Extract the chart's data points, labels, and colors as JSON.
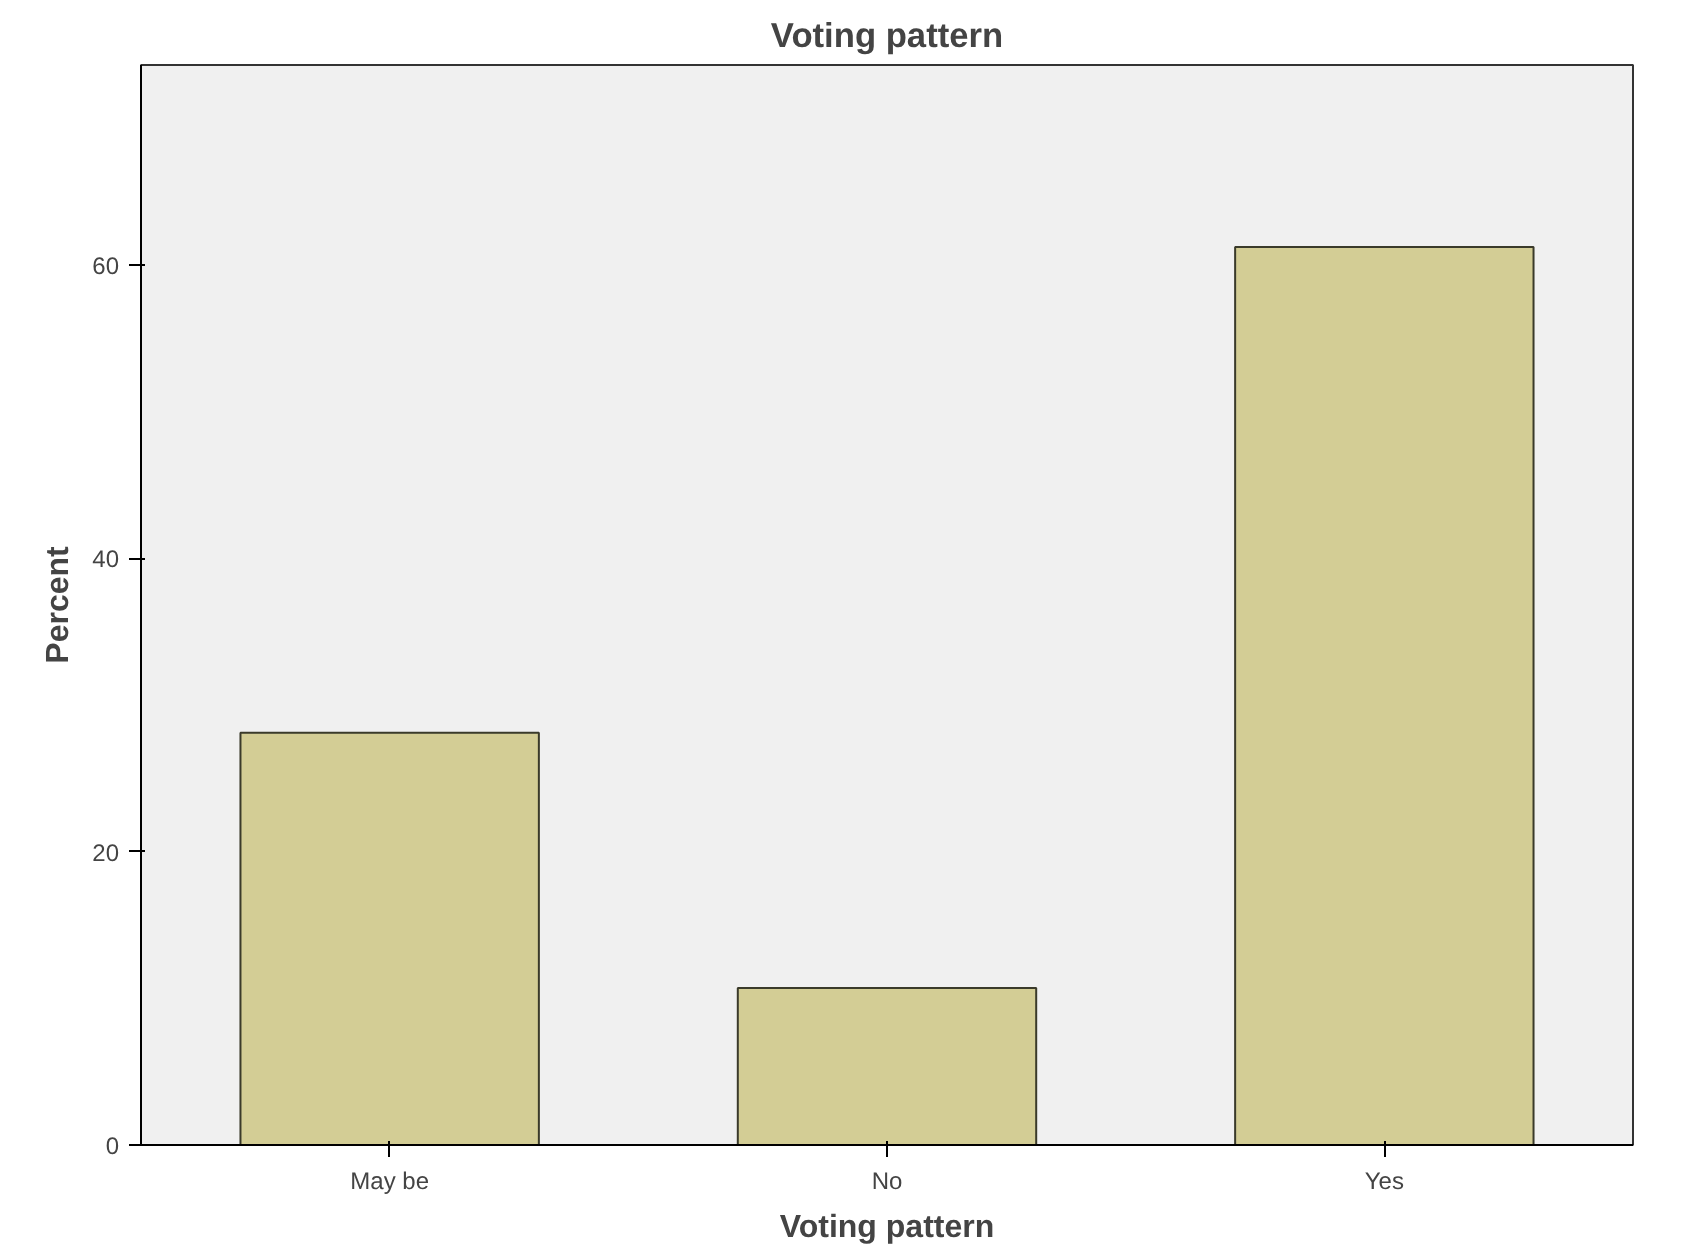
{
  "chart_data": {
    "type": "bar",
    "title": "Voting pattern",
    "xlabel": "Voting pattern",
    "ylabel": "Percent",
    "categories": [
      "May be",
      "No",
      "Yes"
    ],
    "values": [
      28.1,
      10.7,
      61.2
    ],
    "color": "#d3cd95",
    "ylim": [
      0,
      73.6
    ],
    "yticks": [
      0,
      20,
      40,
      60
    ],
    "grid": false
  }
}
